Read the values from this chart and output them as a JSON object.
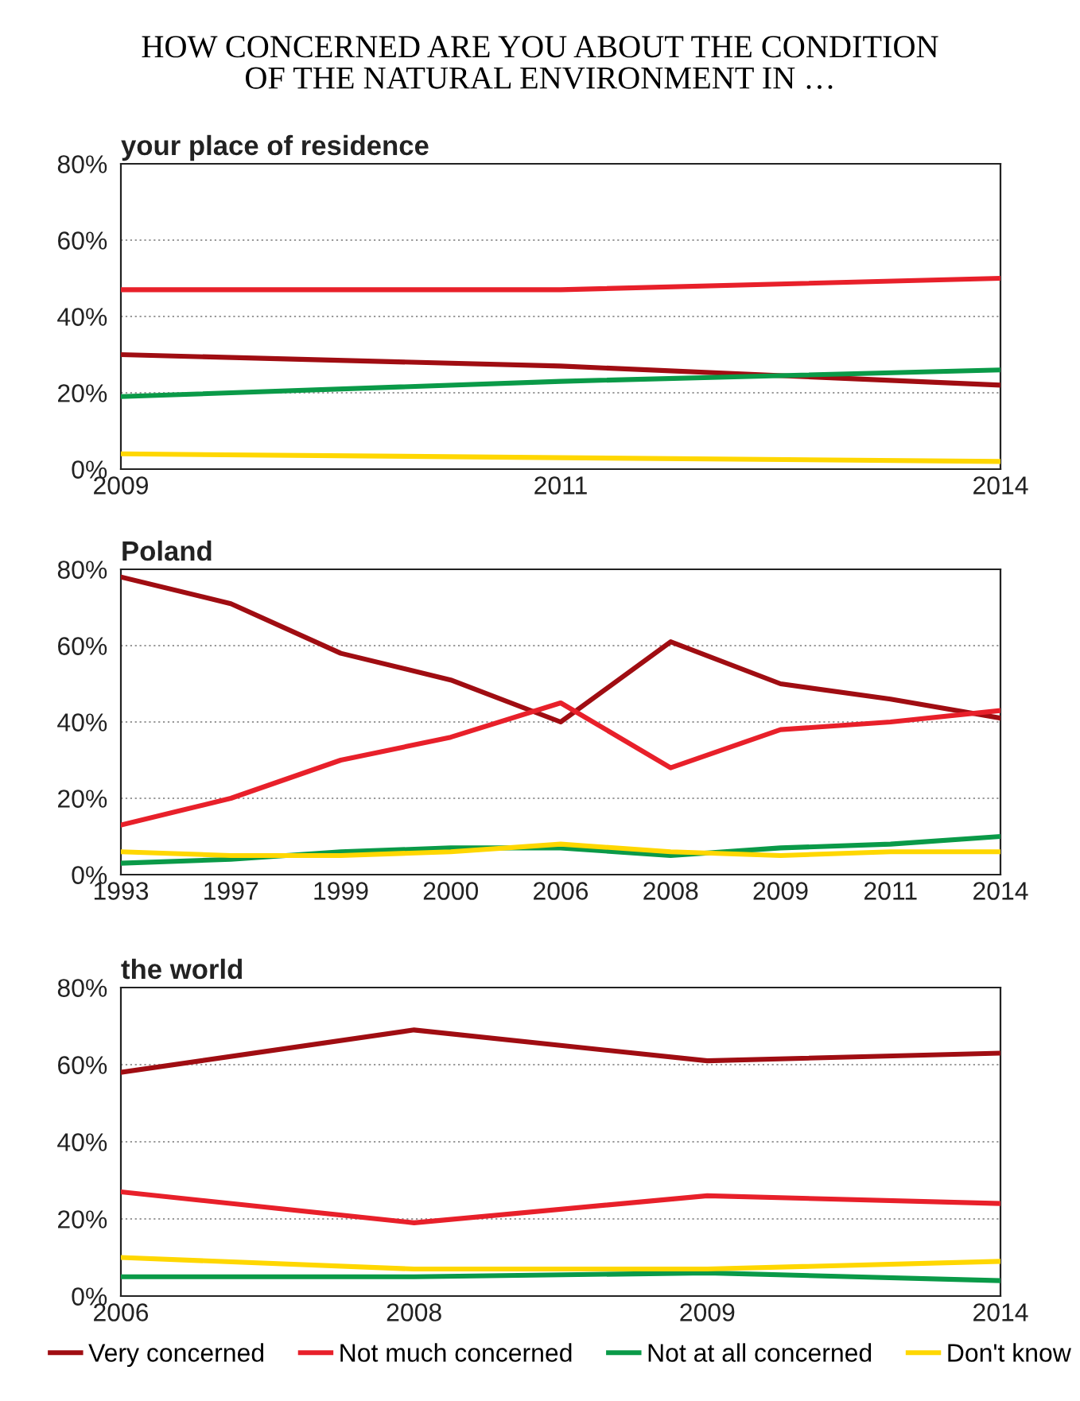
{
  "chart_data": [
    {
      "type": "line",
      "title": "HOW CONCERNED ARE YOU ABOUT THE CONDITION\nOF THE NATURAL ENVIRONMENT IN …",
      "subtitle": "your place of residence",
      "categories": [
        "2009",
        "2011",
        "2014"
      ],
      "series": [
        {
          "color": "#a00d12",
          "values": [
            30,
            27,
            22
          ]
        },
        {
          "color": "#e8202a",
          "values": [
            47,
            47,
            50
          ]
        },
        {
          "color": "#0a9a48",
          "values": [
            19,
            23,
            26
          ]
        },
        {
          "color": "#ffd700",
          "values": [
            4,
            3,
            2
          ]
        }
      ],
      "ylim": [
        0,
        80
      ],
      "yticks": [
        {
          "value": 0,
          "label": "0%"
        },
        {
          "value": 20,
          "label": "20%"
        },
        {
          "value": 40,
          "label": "40%"
        },
        {
          "value": 60,
          "label": "60%"
        },
        {
          "value": 80,
          "label": "80%"
        }
      ],
      "grid": "y",
      "line_style": "solid"
    },
    {
      "type": "line",
      "title": "Poland",
      "categories": [
        "1993",
        "1997",
        "1999",
        "2000",
        "2006",
        "2008",
        "2009",
        "2011",
        "2014"
      ],
      "series": [
        {
          "color": "#a00d12",
          "values": [
            78,
            71,
            58,
            51,
            40,
            61,
            50,
            46,
            41
          ]
        },
        {
          "color": "#e8202a",
          "values": [
            13,
            20,
            30,
            36,
            45,
            28,
            38,
            40,
            43
          ]
        },
        {
          "color": "#0a9a48",
          "values": [
            3,
            4,
            6,
            7,
            7,
            5,
            7,
            8,
            10
          ]
        },
        {
          "color": "#ffd700",
          "values": [
            6,
            5,
            5,
            6,
            8,
            6,
            5,
            6,
            6
          ]
        }
      ],
      "ylim": [
        0,
        80
      ],
      "yticks": [
        {
          "value": 0,
          "label": "0%"
        },
        {
          "value": 20,
          "label": "20%"
        },
        {
          "value": 40,
          "label": "40%"
        },
        {
          "value": 60,
          "label": "60%"
        },
        {
          "value": 80,
          "label": "80%"
        }
      ],
      "grid": "y",
      "line_style": "solid"
    },
    {
      "type": "line",
      "title": "the world",
      "categories": [
        "2006",
        "2008",
        "2009",
        "2014"
      ],
      "series": [
        {
          "name": "Very concerned",
          "color": "#a00d12",
          "values": [
            58,
            69,
            61,
            63
          ]
        },
        {
          "name": "Not much concerned",
          "color": "#e8202a",
          "values": [
            27,
            19,
            26,
            24
          ]
        },
        {
          "name": "Not at all concerned",
          "color": "#0a9a48",
          "values": [
            5,
            5,
            6,
            4
          ]
        },
        {
          "name": "Don't know",
          "color": "#ffd700",
          "values": [
            10,
            7,
            7,
            9
          ]
        }
      ],
      "ylim": [
        0,
        80
      ],
      "yticks": [
        {
          "value": 0,
          "label": "0%"
        },
        {
          "value": 20,
          "label": "20%"
        },
        {
          "value": 40,
          "label": "40%"
        },
        {
          "value": 60,
          "label": "60%"
        },
        {
          "value": 80,
          "label": "80%"
        }
      ],
      "grid": "y",
      "line_style": "solid",
      "legend": "bottom"
    }
  ]
}
